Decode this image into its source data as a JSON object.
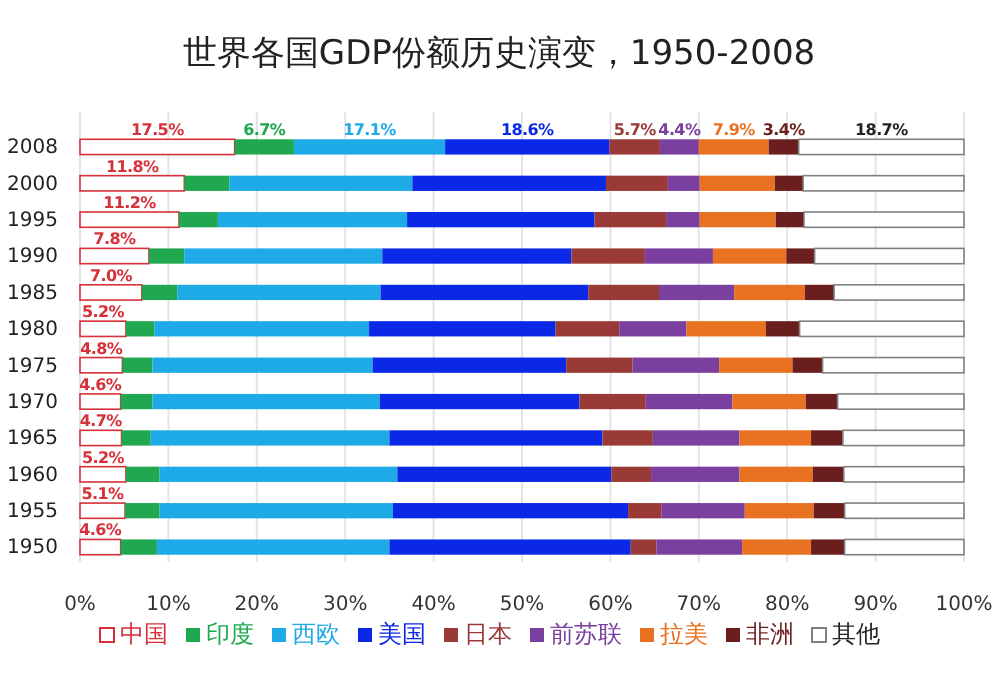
{
  "chart_data": {
    "type": "bar",
    "orientation": "horizontal",
    "stacked": true,
    "title": "世界各国GDP份额历史演变，1950-2008",
    "categories": [
      "2008",
      "2000",
      "1995",
      "1990",
      "1985",
      "1980",
      "1975",
      "1970",
      "1965",
      "1960",
      "1955",
      "1950"
    ],
    "xlim": [
      0,
      100
    ],
    "xticks": [
      {
        "value": 0,
        "label": "0%"
      },
      {
        "value": 10,
        "label": "10%"
      },
      {
        "value": 20,
        "label": "20%"
      },
      {
        "value": 30,
        "label": "30%"
      },
      {
        "value": 40,
        "label": "40%"
      },
      {
        "value": 50,
        "label": "50%"
      },
      {
        "value": 60,
        "label": "60%"
      },
      {
        "value": 70,
        "label": "70%"
      },
      {
        "value": 80,
        "label": "80%"
      },
      {
        "value": 90,
        "label": "90%"
      },
      {
        "value": 100,
        "label": "100%"
      }
    ],
    "grid": "x",
    "legend": "bottom",
    "series": [
      {
        "name": "中国",
        "color": "#ffffff",
        "values": [
          17.5,
          11.8,
          11.2,
          7.8,
          7.0,
          5.2,
          4.8,
          4.6,
          4.7,
          5.2,
          5.1,
          4.6
        ],
        "value_labels": [
          "17.5%",
          "11.8%",
          "11.2%",
          "7.8%",
          "7.0%",
          "5.2%",
          "4.8%",
          "4.6%",
          "4.7%",
          "5.2%",
          "5.1%",
          "4.6%"
        ]
      },
      {
        "name": "印度",
        "color": "#1fa84f",
        "values": [
          6.7,
          5.1,
          4.4,
          4.0,
          4.0,
          3.2,
          3.4,
          3.6,
          3.3,
          3.8,
          3.9,
          4.1
        ],
        "value_labels": [
          "6.7%",
          null,
          null,
          null,
          null,
          null,
          null,
          null,
          null,
          null,
          null,
          null
        ]
      },
      {
        "name": "西欧",
        "color": "#1eaae7",
        "values": [
          17.1,
          20.7,
          21.4,
          22.4,
          23.0,
          24.3,
          24.9,
          25.7,
          27.0,
          26.9,
          26.4,
          26.3
        ],
        "value_labels": [
          "17.1%",
          null,
          null,
          null,
          null,
          null,
          null,
          null,
          null,
          null,
          null,
          null
        ]
      },
      {
        "name": "美国",
        "color": "#0a28e6",
        "values": [
          18.6,
          21.9,
          21.2,
          21.4,
          23.5,
          21.1,
          21.9,
          22.6,
          24.1,
          24.2,
          26.6,
          27.3
        ],
        "value_labels": [
          "18.6%",
          null,
          null,
          null,
          null,
          null,
          null,
          null,
          null,
          null,
          null,
          null
        ]
      },
      {
        "name": "日本",
        "color": "#9a3a36",
        "values": [
          5.7,
          7.0,
          8.1,
          8.3,
          8.0,
          7.2,
          7.5,
          7.5,
          5.7,
          4.5,
          3.8,
          2.9
        ],
        "value_labels": [
          "5.7%",
          null,
          null,
          null,
          null,
          null,
          null,
          null,
          null,
          null,
          null,
          null
        ]
      },
      {
        "name": "前苏联",
        "color": "#7b3fa0",
        "values": [
          4.4,
          3.6,
          3.8,
          7.7,
          8.5,
          7.6,
          9.8,
          9.8,
          9.8,
          10.0,
          9.4,
          9.7
        ],
        "value_labels": [
          "4.4%",
          null,
          null,
          null,
          null,
          null,
          null,
          null,
          null,
          null,
          null,
          null
        ]
      },
      {
        "name": "拉美",
        "color": "#e87222",
        "values": [
          7.9,
          8.5,
          8.6,
          8.3,
          8.0,
          9.0,
          8.3,
          8.3,
          8.1,
          8.3,
          7.8,
          7.8
        ],
        "value_labels": [
          "7.9%",
          null,
          null,
          null,
          null,
          null,
          null,
          null,
          null,
          null,
          null,
          null
        ]
      },
      {
        "name": "非洲",
        "color": "#6b1e1e",
        "values": [
          3.4,
          3.2,
          3.2,
          3.2,
          3.3,
          3.8,
          3.4,
          3.6,
          3.6,
          3.5,
          3.5,
          3.8
        ],
        "value_labels": [
          "3.4%",
          null,
          null,
          null,
          null,
          null,
          null,
          null,
          null,
          null,
          null,
          null
        ]
      },
      {
        "name": "其他",
        "color": "#ffffff",
        "values": [
          18.7,
          18.2,
          18.1,
          16.9,
          14.7,
          18.6,
          16.0,
          14.3,
          13.7,
          13.6,
          13.5,
          13.5
        ],
        "value_labels": [
          "18.7%",
          null,
          null,
          null,
          null,
          null,
          null,
          null,
          null,
          null,
          null,
          null
        ]
      }
    ]
  }
}
